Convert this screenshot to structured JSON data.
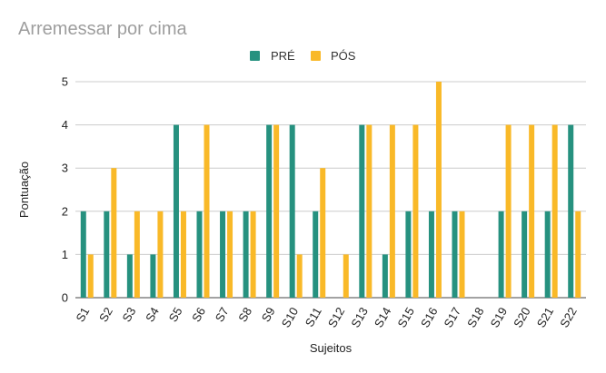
{
  "chart_data": {
    "type": "bar",
    "title": "Arremessar por cima",
    "xlabel": "Sujeitos",
    "ylabel": "Pontuação",
    "ylim": [
      0,
      5
    ],
    "yticks": [
      0,
      1,
      2,
      3,
      4,
      5
    ],
    "grid": true,
    "legend_position": "top-center",
    "categories": [
      "S1",
      "S2",
      "S3",
      "S4",
      "S5",
      "S6",
      "S7",
      "S8",
      "S9",
      "S10",
      "S11",
      "S12",
      "S13",
      "S14",
      "S15",
      "S16",
      "S17",
      "S18",
      "S19",
      "S20",
      "S21",
      "S22"
    ],
    "series": [
      {
        "name": "PRÉ",
        "color": "#26917f",
        "values": [
          2,
          2,
          1,
          1,
          4,
          2,
          2,
          2,
          4,
          4,
          2,
          0,
          4,
          1,
          2,
          2,
          2,
          0,
          2,
          2,
          2,
          4
        ]
      },
      {
        "name": "PÓS",
        "color": "#f9b928",
        "values": [
          1,
          3,
          2,
          2,
          2,
          4,
          2,
          2,
          4,
          1,
          3,
          1,
          4,
          4,
          4,
          5,
          2,
          0,
          4,
          4,
          4,
          2
        ]
      }
    ]
  }
}
